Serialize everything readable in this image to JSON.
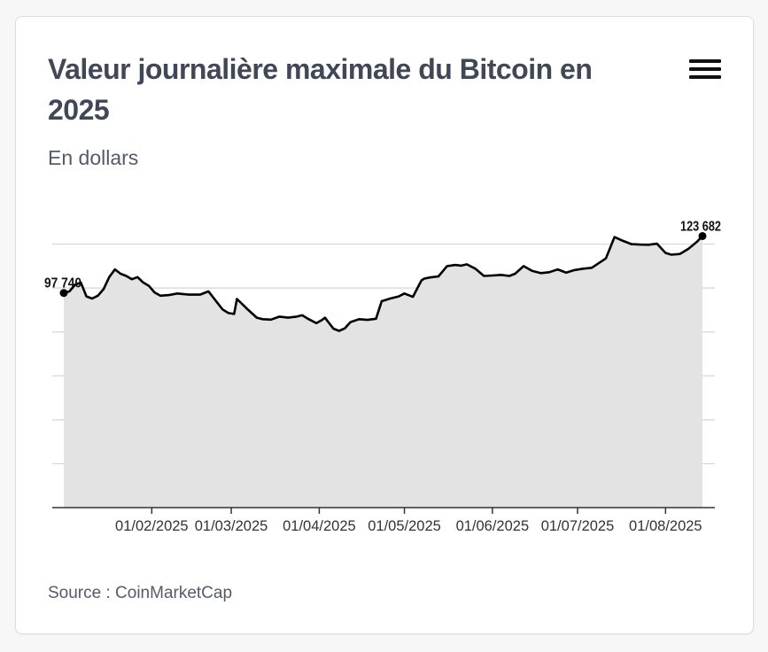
{
  "title": "Valeur journalière maximale du Bitcoin en 2025",
  "subtitle": "En dollars",
  "source": "Source : CoinMarketCap",
  "menu_icon": "hamburger-menu-icon",
  "colors": {
    "line": "#000000",
    "area": "#e3e3e3",
    "grid": "#d6d6d6",
    "axis": "#333333",
    "title": "#404756"
  },
  "chart_data": {
    "type": "area",
    "title": "Valeur journalière maximale du Bitcoin en 2025",
    "subtitle": "En dollars",
    "xlabel": "",
    "ylabel": "",
    "x_range": [
      "2025-01-01",
      "2025-08-14"
    ],
    "ylim": [
      0,
      140000
    ],
    "y_gridlines": [
      0,
      20000,
      40000,
      60000,
      80000,
      100000,
      120000
    ],
    "grid": true,
    "legend": "none",
    "x_ticks": [
      "01/02/2025",
      "01/03/2025",
      "01/04/2025",
      "01/05/2025",
      "01/06/2025",
      "01/07/2025",
      "01/08/2025"
    ],
    "x_tick_dates": [
      "2025-02-01",
      "2025-03-01",
      "2025-04-01",
      "2025-05-01",
      "2025-06-01",
      "2025-07-01",
      "2025-08-01"
    ],
    "annotations": [
      {
        "date": "2025-01-01",
        "value": 97740,
        "label": "97 740"
      },
      {
        "date": "2025-08-14",
        "value": 123682,
        "label": "123 682"
      }
    ],
    "series": [
      {
        "dates": [
          "2025-01-01",
          "2025-01-03",
          "2025-01-05",
          "2025-01-07",
          "2025-01-09",
          "2025-01-11",
          "2025-01-13",
          "2025-01-15",
          "2025-01-17",
          "2025-01-19",
          "2025-01-21",
          "2025-01-23",
          "2025-01-25",
          "2025-01-27",
          "2025-01-29",
          "2025-01-31",
          "2025-02-02",
          "2025-02-04",
          "2025-02-07",
          "2025-02-10",
          "2025-02-14",
          "2025-02-18",
          "2025-02-21",
          "2025-02-24",
          "2025-02-26",
          "2025-02-28",
          "2025-03-02",
          "2025-03-03",
          "2025-03-05",
          "2025-03-07",
          "2025-03-10",
          "2025-03-12",
          "2025-03-15",
          "2025-03-18",
          "2025-03-21",
          "2025-03-24",
          "2025-03-26",
          "2025-03-28",
          "2025-03-31",
          "2025-04-02",
          "2025-04-03",
          "2025-04-06",
          "2025-04-08",
          "2025-04-10",
          "2025-04-12",
          "2025-04-15",
          "2025-04-18",
          "2025-04-21",
          "2025-04-23",
          "2025-04-26",
          "2025-04-29",
          "2025-05-01",
          "2025-05-04",
          "2025-05-07",
          "2025-05-08",
          "2025-05-10",
          "2025-05-13",
          "2025-05-16",
          "2025-05-19",
          "2025-05-21",
          "2025-05-23",
          "2025-05-26",
          "2025-05-29",
          "2025-06-01",
          "2025-06-04",
          "2025-06-07",
          "2025-06-09",
          "2025-06-12",
          "2025-06-15",
          "2025-06-18",
          "2025-06-21",
          "2025-06-24",
          "2025-06-27",
          "2025-06-30",
          "2025-07-03",
          "2025-07-06",
          "2025-07-09",
          "2025-07-11",
          "2025-07-14",
          "2025-07-17",
          "2025-07-20",
          "2025-07-23",
          "2025-07-26",
          "2025-07-29",
          "2025-08-01",
          "2025-08-03",
          "2025-08-06",
          "2025-08-09",
          "2025-08-12",
          "2025-08-14"
        ],
        "values": [
          97740,
          98500,
          101500,
          102500,
          96200,
          95200,
          96500,
          99500,
          105000,
          108500,
          106500,
          105500,
          104000,
          105000,
          102500,
          101000,
          98000,
          96500,
          96800,
          97500,
          97000,
          97000,
          98500,
          93500,
          90200,
          88600,
          88200,
          95000,
          92500,
          90000,
          86500,
          85800,
          85600,
          87000,
          86500,
          87000,
          87600,
          86000,
          84000,
          85500,
          86500,
          81500,
          80500,
          81600,
          84500,
          85800,
          85500,
          86000,
          94000,
          95200,
          96200,
          97500,
          96000,
          103500,
          104300,
          104800,
          105300,
          110000,
          110500,
          110200,
          110800,
          108800,
          105500,
          105700,
          106000,
          105500,
          106500,
          110000,
          107800,
          106800,
          107200,
          108500,
          107000,
          108200,
          108800,
          109200,
          111800,
          113500,
          123200,
          121500,
          120000,
          119800,
          119700,
          120200,
          116000,
          115200,
          115500,
          117800,
          121000,
          123682
        ]
      }
    ]
  }
}
